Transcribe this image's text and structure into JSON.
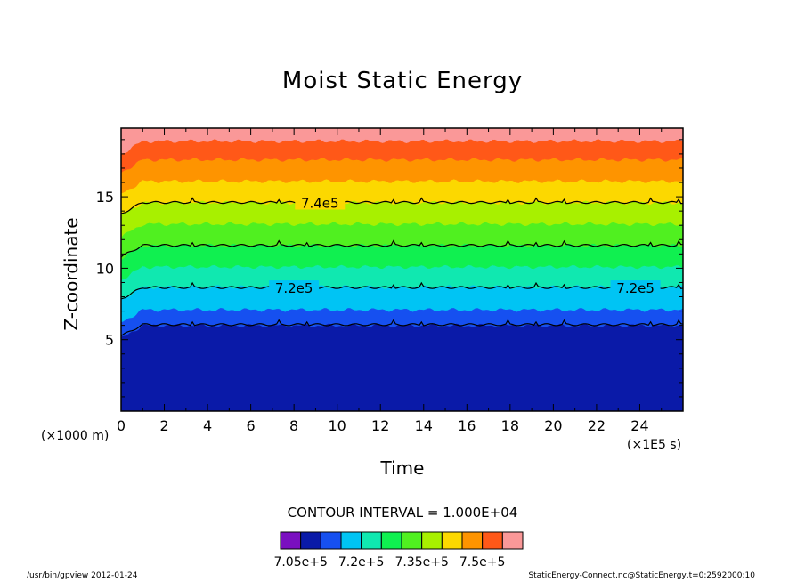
{
  "chart_data": {
    "type": "contour",
    "title": "Moist Static Energy",
    "xlabel": "Time",
    "ylabel": "Z-coordinate",
    "x_unit_label": "(×1E5 s)",
    "y_unit_label": "(×1000 m)",
    "xlim": [
      0,
      26
    ],
    "ylim": [
      0,
      19.8
    ],
    "x_ticks": [
      0,
      2,
      4,
      6,
      8,
      10,
      12,
      14,
      16,
      18,
      20,
      22,
      24
    ],
    "y_ticks": [
      5,
      10,
      15
    ],
    "contour_interval_text": "CONTOUR INTERVAL = 1.000E+04",
    "bands": [
      {
        "z_bottom": 0.0,
        "z_top": 6.0,
        "color": "#0a1aa8"
      },
      {
        "z_bottom": 6.0,
        "z_top": 7.1,
        "color": "#1650f0"
      },
      {
        "z_bottom": 7.1,
        "z_top": 8.7,
        "color": "#00c4f4"
      },
      {
        "z_bottom": 8.7,
        "z_top": 10.1,
        "color": "#10e8b0"
      },
      {
        "z_bottom": 10.1,
        "z_top": 11.6,
        "color": "#10f050"
      },
      {
        "z_bottom": 11.6,
        "z_top": 13.1,
        "color": "#50f020"
      },
      {
        "z_bottom": 13.1,
        "z_top": 14.6,
        "color": "#a8f000"
      },
      {
        "z_bottom": 14.6,
        "z_top": 16.1,
        "color": "#fcd800"
      },
      {
        "z_bottom": 16.1,
        "z_top": 17.6,
        "color": "#fe9400"
      },
      {
        "z_bottom": 17.6,
        "z_top": 18.9,
        "color": "#ff5818"
      },
      {
        "z_bottom": 18.9,
        "z_top": 19.8,
        "color": "#fa9898"
      }
    ],
    "contour_lines": [
      {
        "z": 6.05,
        "label": ""
      },
      {
        "z": 8.65,
        "label": "7.2e5",
        "label_x": [
          8.0,
          23.8
        ]
      },
      {
        "z": 11.6,
        "label": ""
      },
      {
        "z": 14.6,
        "label": "7.4e5",
        "label_x": [
          9.2
        ]
      }
    ],
    "colorbar": {
      "colors": [
        "#7a10c0",
        "#0a1aa8",
        "#1650f0",
        "#00c4f4",
        "#10e8b0",
        "#10f050",
        "#50f020",
        "#a8f000",
        "#fcd800",
        "#fe9400",
        "#ff5818",
        "#fa9898"
      ],
      "tick_labels": [
        {
          "text": "7.05e+5",
          "index": 1
        },
        {
          "text": "7.2e+5",
          "index": 4
        },
        {
          "text": "7.35e+5",
          "index": 7
        },
        {
          "text": "7.5e+5",
          "index": 10
        }
      ]
    }
  },
  "footer": {
    "left": "/usr/bin/gpview   2012-01-24",
    "right": "StaticEnergy-Connect.nc@StaticEnergy,t=0:2592000:10"
  }
}
